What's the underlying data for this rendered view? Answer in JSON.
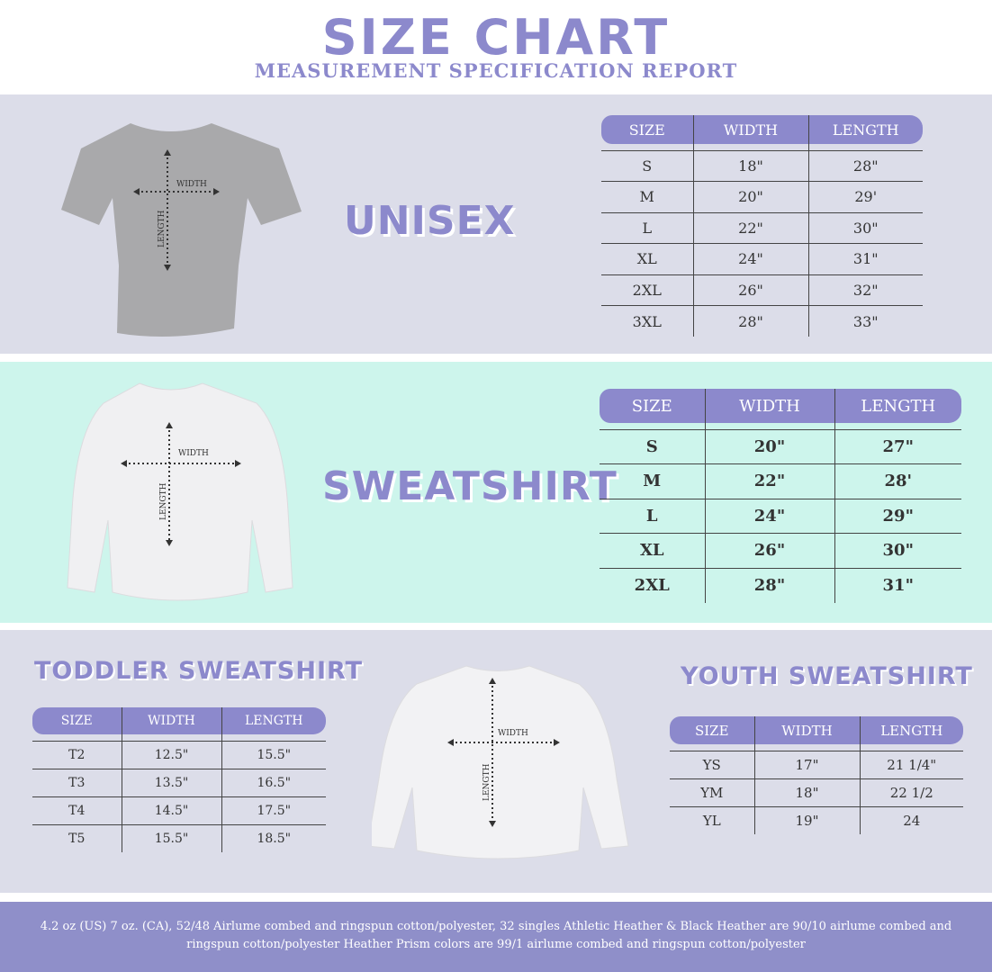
{
  "header": {
    "title": "SIZE CHART",
    "subtitle": "MEASUREMENT SPECIFICATION REPORT"
  },
  "colors": {
    "accent": "#8c89cc",
    "band_grey": "#dcdde9",
    "band_mint": "#cdf5ec",
    "footer": "#8f8fc9"
  },
  "diagram_labels": {
    "width": "WIDTH",
    "length": "LENGTH"
  },
  "unisex": {
    "heading": "UNISEX",
    "columns": [
      "SIZE",
      "WIDTH",
      "LENGTH"
    ],
    "rows": [
      [
        "S",
        "18\"",
        "28\""
      ],
      [
        "M",
        "20\"",
        "29'"
      ],
      [
        "L",
        "22\"",
        "30\""
      ],
      [
        "XL",
        "24\"",
        "31\""
      ],
      [
        "2XL",
        "26\"",
        "32\""
      ],
      [
        "3XL",
        "28\"",
        "33\""
      ]
    ]
  },
  "sweatshirt": {
    "heading": "SWEATSHIRT",
    "columns": [
      "SIZE",
      "WIDTH",
      "LENGTH"
    ],
    "rows": [
      [
        "S",
        "20\"",
        "27\""
      ],
      [
        "M",
        "22\"",
        "28'"
      ],
      [
        "L",
        "24\"",
        "29\""
      ],
      [
        "XL",
        "26\"",
        "30\""
      ],
      [
        "2XL",
        "28\"",
        "31\""
      ]
    ]
  },
  "toddler": {
    "heading": "TODDLER SWEATSHIRT",
    "columns": [
      "SIZE",
      "WIDTH",
      "LENGTH"
    ],
    "rows": [
      [
        "T2",
        "12.5\"",
        "15.5\""
      ],
      [
        "T3",
        "13.5\"",
        "16.5\""
      ],
      [
        "T4",
        "14.5\"",
        "17.5\""
      ],
      [
        "T5",
        "15.5\"",
        "18.5\""
      ]
    ]
  },
  "youth": {
    "heading": "YOUTH SWEATSHIRT",
    "columns": [
      "SIZE",
      "WIDTH",
      "LENGTH"
    ],
    "rows": [
      [
        "YS",
        "17\"",
        "21 1/4\""
      ],
      [
        "YM",
        "18\"",
        "22 1/2"
      ],
      [
        "YL",
        "19\"",
        "24"
      ]
    ]
  },
  "footer": {
    "text": "4.2 oz (US) 7 oz. (CA), 52/48 Airlume combed and ringspun cotton/polyester, 32 singles Athletic Heather & Black Heather are 90/10 airlume combed and ringspun cotton/polyester Heather Prism colors are 99/1 airlume combed and ringspun cotton/polyester"
  }
}
